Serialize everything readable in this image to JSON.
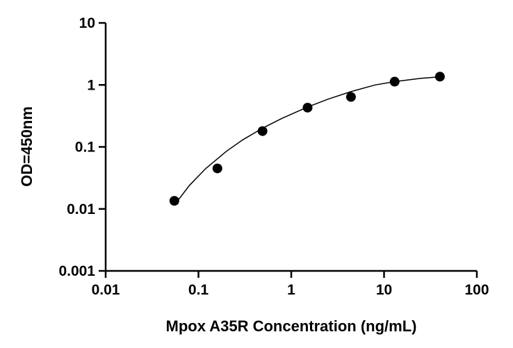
{
  "chart_data": {
    "type": "scatter",
    "title": "",
    "xlabel": "Mpox A35R Concentration (ng/mL)",
    "ylabel": "OD=450nm",
    "xscale": "log",
    "yscale": "log",
    "xlim": [
      0.01,
      100
    ],
    "ylim": [
      0.001,
      10
    ],
    "x_ticks": [
      0.01,
      0.1,
      1,
      10,
      100
    ],
    "x_tick_labels": [
      "0.01",
      "0.1",
      "1",
      "10",
      "100"
    ],
    "y_ticks": [
      0.001,
      0.01,
      0.1,
      1,
      10
    ],
    "y_tick_labels": [
      "0.001",
      "0.01",
      "0.1",
      "1",
      "10"
    ],
    "grid": false,
    "legend": "none",
    "marker_color": "#000000",
    "series": [
      {
        "type": "scatter",
        "x": [
          0.055,
          0.16,
          0.49,
          1.5,
          4.4,
          13,
          40
        ],
        "y": [
          0.0135,
          0.045,
          0.18,
          0.43,
          0.64,
          1.13,
          1.36
        ]
      },
      {
        "type": "line",
        "x": [
          0.055,
          0.08,
          0.12,
          0.2,
          0.3,
          0.49,
          0.8,
          1.5,
          2.5,
          4.4,
          8,
          13,
          25,
          40
        ],
        "y": [
          0.0115,
          0.024,
          0.045,
          0.085,
          0.13,
          0.2,
          0.29,
          0.44,
          0.59,
          0.78,
          1.0,
          1.13,
          1.28,
          1.35
        ]
      }
    ]
  }
}
